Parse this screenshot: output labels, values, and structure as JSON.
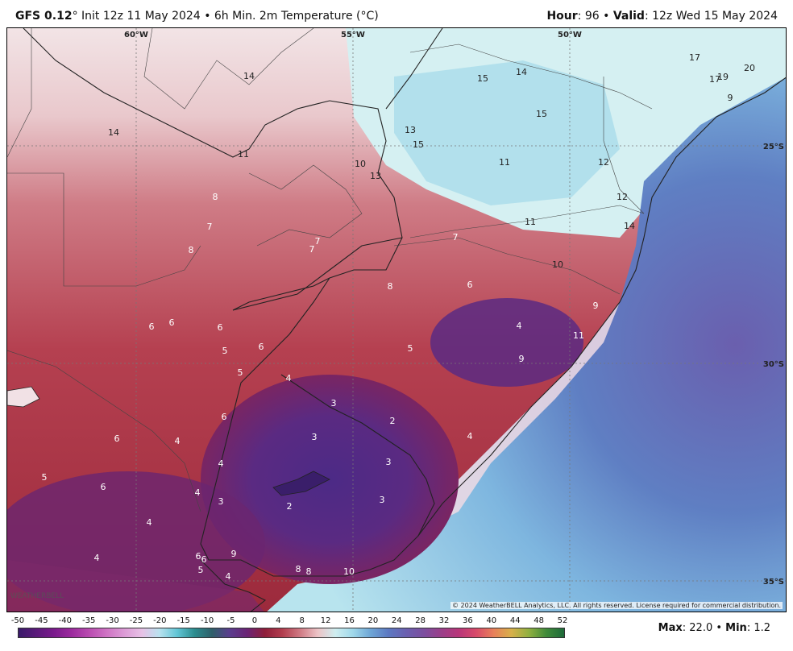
{
  "header": {
    "model": "GFS 0.12",
    "deg": "°",
    "left_rest": " Init 12z 11 May 2024 • 6h Min. 2m Temperature (°C)",
    "hour_label": "Hour",
    "hour_value": ": 96 • ",
    "valid_label": "Valid",
    "valid_value": ": 12z Wed 15 May 2024"
  },
  "map": {
    "lon_labels": [
      "60°W",
      "55°W",
      "50°W"
    ],
    "lat_labels": [
      "25°S",
      "30°S",
      "35°S"
    ],
    "copyright": "© 2024 WeatherBELL Analytics, LLC. All rights reserved. License required for commercial distribution.",
    "logo_text": "WEATHERBELL",
    "temperature_labels": [
      {
        "v": "14"
      },
      {
        "v": "15"
      },
      {
        "v": "14"
      },
      {
        "v": "15"
      },
      {
        "v": "17"
      },
      {
        "v": "17"
      },
      {
        "v": "19"
      },
      {
        "v": "20"
      },
      {
        "v": "9"
      },
      {
        "v": "14"
      },
      {
        "v": "13"
      },
      {
        "v": "15"
      },
      {
        "v": "11"
      },
      {
        "v": "12"
      },
      {
        "v": "10"
      },
      {
        "v": "13"
      },
      {
        "v": "11"
      },
      {
        "v": "8"
      },
      {
        "v": "7"
      },
      {
        "v": "8"
      },
      {
        "v": "7"
      },
      {
        "v": "7"
      },
      {
        "v": "7"
      },
      {
        "v": "11"
      },
      {
        "v": "12"
      },
      {
        "v": "14"
      },
      {
        "v": "10"
      },
      {
        "v": "8"
      },
      {
        "v": "6"
      },
      {
        "v": "9"
      },
      {
        "v": "6"
      },
      {
        "v": "6"
      },
      {
        "v": "6"
      },
      {
        "v": "4"
      },
      {
        "v": "5"
      },
      {
        "v": "5"
      },
      {
        "v": "6"
      },
      {
        "v": "11"
      },
      {
        "v": "5"
      },
      {
        "v": "9"
      },
      {
        "v": "4"
      },
      {
        "v": "3"
      },
      {
        "v": "2"
      },
      {
        "v": "6"
      },
      {
        "v": "3"
      },
      {
        "v": "4"
      },
      {
        "v": "6"
      },
      {
        "v": "4"
      },
      {
        "v": "4"
      },
      {
        "v": "3"
      },
      {
        "v": "5"
      },
      {
        "v": "6"
      },
      {
        "v": "4"
      },
      {
        "v": "3"
      },
      {
        "v": "2"
      },
      {
        "v": "3"
      },
      {
        "v": "4"
      },
      {
        "v": "4"
      },
      {
        "v": "6"
      },
      {
        "v": "6"
      },
      {
        "v": "9"
      },
      {
        "v": "5"
      },
      {
        "v": "4"
      },
      {
        "v": "8"
      },
      {
        "v": "8"
      },
      {
        "v": "10"
      }
    ]
  },
  "colorbar": {
    "ticks": [
      "-50",
      "-45",
      "-40",
      "-35",
      "-30",
      "-25",
      "-20",
      "-15",
      "-10",
      "-5",
      "0",
      "4",
      "8",
      "12",
      "16",
      "20",
      "24",
      "28",
      "32",
      "36",
      "40",
      "44",
      "48",
      "52"
    ],
    "colors": [
      "#3a1a6a",
      "#5a1a7a",
      "#7a1a8c",
      "#9c2a9e",
      "#b94bb0",
      "#cf73c4",
      "#dc9bd6",
      "#e7c1e6",
      "#b9e2ef",
      "#62c6d6",
      "#2c8d8f",
      "#2f5f6a",
      "#5b3d8e",
      "#6b2475",
      "#8f1e3a",
      "#b23d4e",
      "#d07a84",
      "#ecc3c6",
      "#cfeef0",
      "#9fd8ea",
      "#6ea6d6",
      "#5c79c2",
      "#6a60b0",
      "#7c4fa0",
      "#9a3f8a",
      "#b8367a",
      "#d84a6a",
      "#e8805a",
      "#d8b04a",
      "#90b040",
      "#3f8a3a",
      "#1e6a3a"
    ]
  },
  "footer": {
    "max_label": "Max",
    "max_value": ": 22.0 • ",
    "min_label": "Min",
    "min_value": ": 1.2"
  }
}
